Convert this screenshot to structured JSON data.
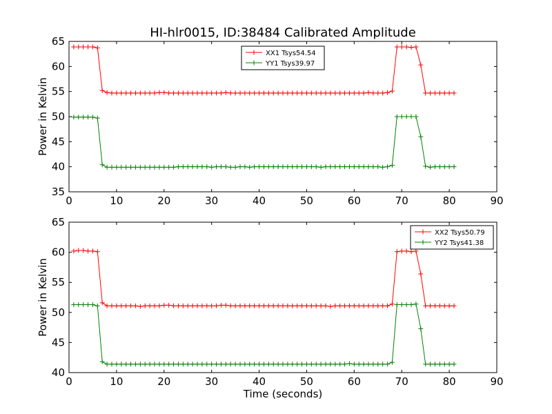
{
  "figure": {
    "title": "HI-hlr0015, ID:38484 Calibrated Amplitude"
  },
  "chart_data": [
    {
      "type": "line",
      "title": "HI-hlr0015, ID:38484 Calibrated Amplitude",
      "xlabel": "",
      "ylabel": "Power in Kelvin",
      "xlim": [
        0,
        90
      ],
      "ylim": [
        35,
        65
      ],
      "xticks": [
        0,
        10,
        20,
        30,
        40,
        50,
        60,
        70,
        80,
        90
      ],
      "yticks": [
        35,
        40,
        45,
        50,
        55,
        60,
        65
      ],
      "grid": false,
      "legend_placement": "top-center",
      "x": [
        1,
        2,
        3,
        4,
        5,
        6,
        7,
        8,
        9,
        10,
        11,
        12,
        13,
        14,
        15,
        16,
        17,
        18,
        19,
        20,
        21,
        22,
        23,
        24,
        25,
        26,
        27,
        28,
        29,
        30,
        31,
        32,
        33,
        34,
        35,
        36,
        37,
        38,
        39,
        40,
        41,
        42,
        43,
        44,
        45,
        46,
        47,
        48,
        49,
        50,
        51,
        52,
        53,
        54,
        55,
        56,
        57,
        58,
        59,
        60,
        61,
        62,
        63,
        64,
        65,
        66,
        67,
        68,
        69,
        70,
        71,
        72,
        73,
        74,
        75,
        76,
        77,
        78,
        79,
        80,
        81
      ],
      "series": [
        {
          "name": "XX1 Tsys54.54",
          "color": "#ff0000",
          "values": [
            63.9,
            63.9,
            63.9,
            63.9,
            63.9,
            63.7,
            55.2,
            54.8,
            54.7,
            54.7,
            54.7,
            54.7,
            54.7,
            54.7,
            54.7,
            54.7,
            54.7,
            54.7,
            54.8,
            54.8,
            54.7,
            54.7,
            54.7,
            54.7,
            54.7,
            54.7,
            54.7,
            54.7,
            54.7,
            54.7,
            54.7,
            54.7,
            54.8,
            54.7,
            54.7,
            54.7,
            54.7,
            54.7,
            54.7,
            54.7,
            54.7,
            54.7,
            54.7,
            54.7,
            54.7,
            54.7,
            54.7,
            54.7,
            54.7,
            54.7,
            54.7,
            54.7,
            54.7,
            54.7,
            54.7,
            54.7,
            54.7,
            54.7,
            54.7,
            54.7,
            54.7,
            54.7,
            54.8,
            54.7,
            54.7,
            54.7,
            54.8,
            55.1,
            63.9,
            63.9,
            63.9,
            63.8,
            63.9,
            60.3,
            54.7,
            54.7,
            54.7,
            54.7,
            54.7,
            54.7,
            54.7
          ]
        },
        {
          "name": "YY1 Tsys39.97",
          "color": "#008000",
          "values": [
            49.9,
            49.9,
            49.9,
            49.9,
            49.9,
            49.7,
            40.4,
            39.9,
            39.9,
            39.9,
            39.9,
            39.9,
            39.9,
            39.9,
            39.9,
            39.9,
            39.9,
            39.9,
            39.9,
            39.9,
            39.9,
            39.9,
            40.0,
            40.0,
            40.0,
            40.0,
            40.0,
            40.0,
            40.0,
            39.9,
            40.0,
            40.0,
            40.0,
            39.9,
            39.9,
            40.0,
            40.0,
            39.9,
            40.0,
            40.0,
            40.0,
            40.0,
            40.0,
            40.0,
            40.0,
            40.0,
            40.0,
            40.0,
            40.0,
            40.0,
            40.0,
            40.0,
            39.9,
            40.0,
            40.0,
            40.0,
            40.0,
            40.0,
            40.0,
            40.0,
            40.0,
            40.0,
            40.0,
            40.0,
            40.0,
            39.9,
            40.0,
            40.3,
            50.0,
            50.0,
            50.0,
            50.0,
            50.0,
            46.0,
            40.1,
            39.9,
            40.0,
            40.0,
            40.0,
            40.0,
            40.0
          ]
        }
      ]
    },
    {
      "type": "line",
      "title": "",
      "xlabel": "Time (seconds)",
      "ylabel": "Power in Kelvin",
      "xlim": [
        0,
        90
      ],
      "ylim": [
        40,
        65
      ],
      "xticks": [
        0,
        10,
        20,
        30,
        40,
        50,
        60,
        70,
        80,
        90
      ],
      "yticks": [
        40,
        45,
        50,
        55,
        60,
        65
      ],
      "grid": false,
      "legend_placement": "top-right",
      "x": [
        1,
        2,
        3,
        4,
        5,
        6,
        7,
        8,
        9,
        10,
        11,
        12,
        13,
        14,
        15,
        16,
        17,
        18,
        19,
        20,
        21,
        22,
        23,
        24,
        25,
        26,
        27,
        28,
        29,
        30,
        31,
        32,
        33,
        34,
        35,
        36,
        37,
        38,
        39,
        40,
        41,
        42,
        43,
        44,
        45,
        46,
        47,
        48,
        49,
        50,
        51,
        52,
        53,
        54,
        55,
        56,
        57,
        58,
        59,
        60,
        61,
        62,
        63,
        64,
        65,
        66,
        67,
        68,
        69,
        70,
        71,
        72,
        73,
        74,
        75,
        76,
        77,
        78,
        79,
        80,
        81
      ],
      "series": [
        {
          "name": "XX2 Tsys50.79",
          "color": "#ff0000",
          "values": [
            60.2,
            60.3,
            60.3,
            60.2,
            60.2,
            60.1,
            51.6,
            51.1,
            51.1,
            51.1,
            51.1,
            51.1,
            51.1,
            51.1,
            51.0,
            51.1,
            51.1,
            51.1,
            51.1,
            51.2,
            51.2,
            51.1,
            51.1,
            51.1,
            51.1,
            51.1,
            51.1,
            51.1,
            51.1,
            51.1,
            51.1,
            51.2,
            51.2,
            51.1,
            51.1,
            51.1,
            51.1,
            51.1,
            51.1,
            51.1,
            51.1,
            51.1,
            51.1,
            51.1,
            51.1,
            51.1,
            51.1,
            51.1,
            51.1,
            51.1,
            51.1,
            51.1,
            51.1,
            51.1,
            51.0,
            51.1,
            51.1,
            51.1,
            51.1,
            51.1,
            51.1,
            51.1,
            51.1,
            51.1,
            51.1,
            51.1,
            51.1,
            51.4,
            60.1,
            60.2,
            60.2,
            60.1,
            60.2,
            56.4,
            51.1,
            51.1,
            51.1,
            51.1,
            51.1,
            51.1,
            51.1
          ]
        },
        {
          "name": "YY2 Tsys41.38",
          "color": "#008000",
          "values": [
            51.3,
            51.3,
            51.3,
            51.3,
            51.3,
            51.1,
            41.8,
            41.4,
            41.4,
            41.4,
            41.4,
            41.4,
            41.4,
            41.4,
            41.4,
            41.4,
            41.4,
            41.4,
            41.4,
            41.4,
            41.4,
            41.4,
            41.4,
            41.4,
            41.4,
            41.4,
            41.4,
            41.4,
            41.4,
            41.4,
            41.4,
            41.4,
            41.4,
            41.4,
            41.4,
            41.4,
            41.4,
            41.4,
            41.4,
            41.4,
            41.4,
            41.4,
            41.4,
            41.4,
            41.4,
            41.4,
            41.4,
            41.4,
            41.4,
            41.4,
            41.4,
            41.4,
            41.4,
            41.4,
            41.4,
            41.4,
            41.4,
            41.4,
            41.5,
            41.4,
            41.4,
            41.4,
            41.4,
            41.4,
            41.4,
            41.4,
            41.4,
            41.7,
            51.3,
            51.3,
            51.3,
            51.3,
            51.4,
            47.3,
            41.4,
            41.4,
            41.4,
            41.4,
            41.4,
            41.4,
            41.4
          ]
        }
      ]
    }
  ]
}
